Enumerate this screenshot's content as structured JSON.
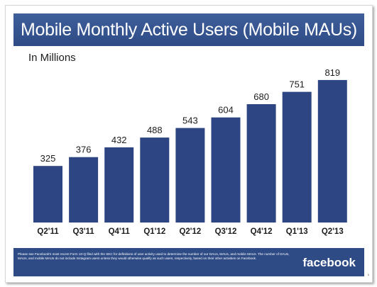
{
  "slide": {
    "title": "Mobile Monthly Active Users (Mobile MAUs)",
    "subtitle": "In Millions",
    "footnote": "Please see Facebook's most recent Form 10-Q filed with the SEC for definitions of user activity used to determine the number of our DAUs, MAUs, and mobile MAUs. The number of DAUs, MAUs, and mobile MAUs do not include Instagram users unless they would otherwise qualify as such users, respectively, based on their other activities on Facebook.",
    "brand": "facebook",
    "page_number": "6"
  },
  "colors": {
    "bar": "#2d4683",
    "title_bar": "#2e4b85",
    "footer": "#2e4b85"
  },
  "chart_data": {
    "type": "bar",
    "categories": [
      "Q2'11",
      "Q3'11",
      "Q4'11",
      "Q1'12",
      "Q2'12",
      "Q3'12",
      "Q4'12",
      "Q1'13",
      "Q2'13"
    ],
    "values": [
      325,
      376,
      432,
      488,
      543,
      604,
      680,
      751,
      819
    ],
    "data_labels": [
      "325",
      "376",
      "432",
      "488",
      "543",
      "604",
      "680",
      "751",
      "819"
    ],
    "title": "Mobile Monthly Active Users (Mobile MAUs)",
    "ylabel": "In Millions",
    "xlabel": "",
    "grid": false,
    "legend": "none"
  }
}
